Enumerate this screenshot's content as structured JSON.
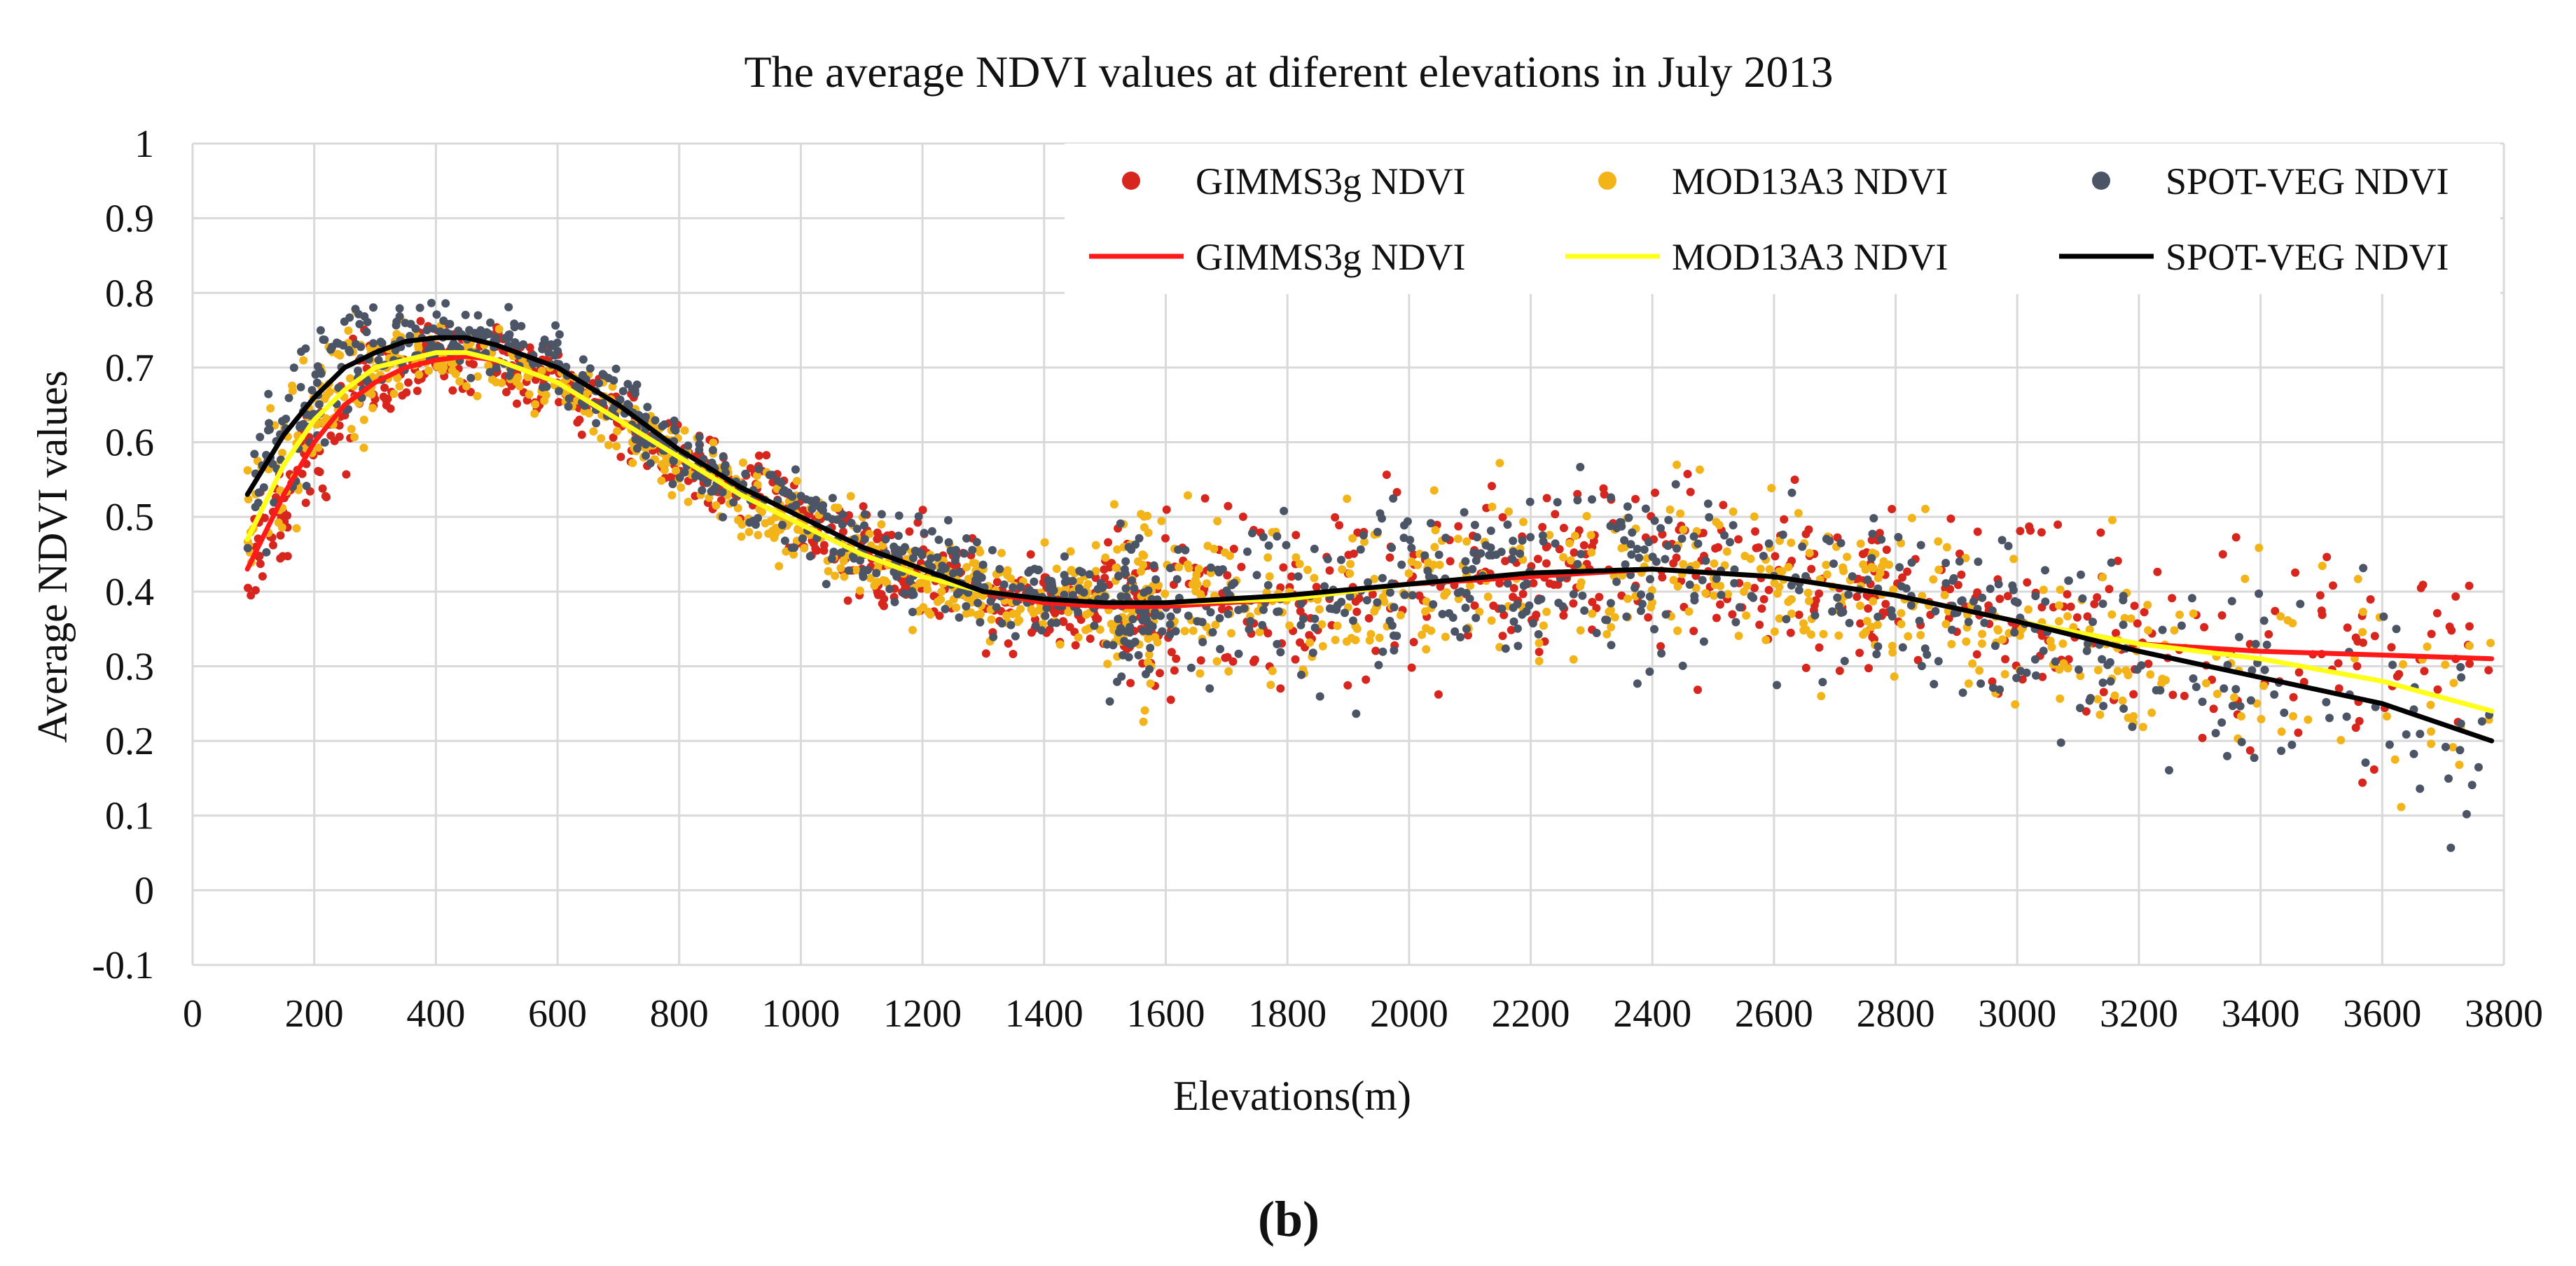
{
  "chart_data": {
    "type": "scatter",
    "title": "The average NDVI values at diferent elevations in July 2013",
    "xlabel": "Elevations(m)",
    "ylabel": "Average NDVI values",
    "xlim": [
      0,
      3800
    ],
    "ylim": [
      -0.1,
      1
    ],
    "x_ticks": [
      "0",
      "200",
      "400",
      "600",
      "800",
      "1000",
      "1200",
      "1400",
      "1600",
      "1800",
      "2000",
      "2200",
      "2400",
      "2600",
      "2800",
      "3000",
      "3200",
      "3400",
      "3600",
      "3800"
    ],
    "y_ticks": [
      "-0.1",
      "0",
      "0.1",
      "0.2",
      "0.3",
      "0.4",
      "0.5",
      "0.6",
      "0.7",
      "0.8",
      "0.9",
      "1"
    ],
    "grid": true,
    "legend_position": "top-right",
    "panel_label": "(b)",
    "scatter_series": [
      {
        "name": "GIMMS3g NDVI",
        "color": "#d7261e",
        "seed": 11
      },
      {
        "name": "MOD13A3 NDVI",
        "color": "#f2b418",
        "seed": 23
      },
      {
        "name": "SPOT-VEG NDVI",
        "color": "#4c5566",
        "seed": 37
      }
    ],
    "trend_series": [
      {
        "name": "GIMMS3g NDVI",
        "color": "#ff1a1a",
        "x": [
          90,
          150,
          200,
          250,
          300,
          350,
          400,
          450,
          500,
          600,
          700,
          800,
          900,
          1000,
          1100,
          1200,
          1300,
          1400,
          1500,
          1600,
          1800,
          2000,
          2200,
          2400,
          2600,
          2800,
          3000,
          3200,
          3400,
          3600,
          3780
        ],
        "y": [
          0.43,
          0.53,
          0.6,
          0.65,
          0.68,
          0.7,
          0.71,
          0.715,
          0.71,
          0.68,
          0.63,
          0.58,
          0.53,
          0.49,
          0.45,
          0.42,
          0.4,
          0.385,
          0.38,
          0.38,
          0.39,
          0.41,
          0.42,
          0.43,
          0.42,
          0.395,
          0.36,
          0.33,
          0.32,
          0.315,
          0.31
        ]
      },
      {
        "name": "MOD13A3 NDVI",
        "color": "#ffff1a",
        "x": [
          90,
          150,
          200,
          250,
          300,
          350,
          400,
          450,
          500,
          600,
          700,
          800,
          900,
          1000,
          1100,
          1200,
          1300,
          1400,
          1500,
          1600,
          1800,
          2000,
          2200,
          2400,
          2600,
          2800,
          3000,
          3200,
          3400,
          3600,
          3780
        ],
        "y": [
          0.47,
          0.57,
          0.63,
          0.67,
          0.7,
          0.71,
          0.72,
          0.72,
          0.71,
          0.68,
          0.63,
          0.58,
          0.53,
          0.49,
          0.45,
          0.42,
          0.4,
          0.39,
          0.385,
          0.385,
          0.39,
          0.41,
          0.425,
          0.43,
          0.42,
          0.395,
          0.36,
          0.33,
          0.31,
          0.28,
          0.24
        ]
      },
      {
        "name": "SPOT-VEG NDVI",
        "color": "#000000",
        "x": [
          90,
          150,
          200,
          250,
          300,
          350,
          400,
          450,
          500,
          600,
          700,
          800,
          900,
          1000,
          1100,
          1200,
          1300,
          1400,
          1500,
          1600,
          1800,
          2000,
          2200,
          2400,
          2600,
          2800,
          3000,
          3200,
          3400,
          3600,
          3780
        ],
        "y": [
          0.53,
          0.61,
          0.66,
          0.7,
          0.72,
          0.735,
          0.74,
          0.74,
          0.73,
          0.7,
          0.65,
          0.59,
          0.54,
          0.5,
          0.46,
          0.43,
          0.4,
          0.39,
          0.385,
          0.385,
          0.395,
          0.41,
          0.425,
          0.43,
          0.42,
          0.395,
          0.36,
          0.32,
          0.285,
          0.25,
          0.2
        ]
      }
    ]
  }
}
